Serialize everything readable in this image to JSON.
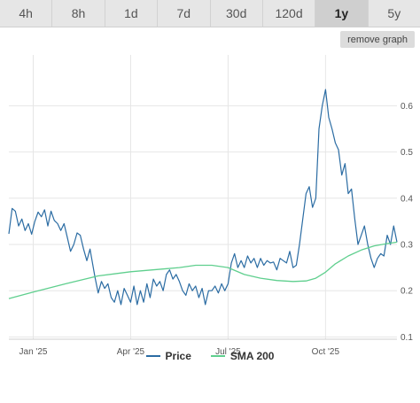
{
  "tabs": [
    {
      "label": "4h",
      "active": false
    },
    {
      "label": "8h",
      "active": false
    },
    {
      "label": "1d",
      "active": false
    },
    {
      "label": "7d",
      "active": false
    },
    {
      "label": "30d",
      "active": false
    },
    {
      "label": "120d",
      "active": false
    },
    {
      "label": "1y",
      "active": true
    },
    {
      "label": "5y",
      "active": false
    }
  ],
  "remove_graph_label": "remove graph",
  "colors": {
    "price": "#2b6ca3",
    "sma": "#5fcf8e",
    "grid": "#e6e6e6"
  },
  "legend": {
    "price": "Price",
    "sma": "SMA 200"
  },
  "chart_data": {
    "type": "line",
    "x_ticks": [
      "Jan '25",
      "Apr '25",
      "Jul '25",
      "Oct '25"
    ],
    "x_tick_pos": [
      0.5,
      3.5,
      6.5,
      9.5
    ],
    "xlim": [
      -0.25,
      11.7
    ],
    "y_ticks": [
      "0.1",
      "0.2",
      "0.3",
      "0.4",
      "0.5",
      "0.6"
    ],
    "ylim": [
      0.095,
      0.71
    ],
    "grid": true,
    "legend_position": "bottom",
    "series": [
      {
        "name": "Price",
        "x": [
          -0.25,
          -0.15,
          -0.05,
          0.05,
          0.15,
          0.25,
          0.35,
          0.45,
          0.55,
          0.65,
          0.75,
          0.85,
          0.95,
          1.05,
          1.15,
          1.25,
          1.35,
          1.45,
          1.55,
          1.65,
          1.75,
          1.85,
          1.95,
          2.05,
          2.15,
          2.25,
          2.4,
          2.5,
          2.6,
          2.7,
          2.8,
          2.9,
          3.0,
          3.1,
          3.2,
          3.3,
          3.4,
          3.5,
          3.6,
          3.7,
          3.8,
          3.9,
          4.0,
          4.1,
          4.2,
          4.3,
          4.4,
          4.5,
          4.6,
          4.7,
          4.8,
          4.9,
          5.0,
          5.1,
          5.2,
          5.3,
          5.4,
          5.5,
          5.6,
          5.7,
          5.8,
          5.9,
          6.0,
          6.1,
          6.2,
          6.3,
          6.4,
          6.5,
          6.6,
          6.7,
          6.8,
          6.9,
          7.0,
          7.1,
          7.2,
          7.3,
          7.4,
          7.5,
          7.6,
          7.7,
          7.8,
          7.9,
          8.0,
          8.1,
          8.2,
          8.3,
          8.4,
          8.5,
          8.6,
          8.7,
          8.8,
          8.9,
          9.0,
          9.1,
          9.2,
          9.3,
          9.4,
          9.5,
          9.6,
          9.7,
          9.8,
          9.9,
          10.0,
          10.1,
          10.2,
          10.3,
          10.4,
          10.5,
          10.6,
          10.7,
          10.8,
          10.9,
          11.0,
          11.1,
          11.2,
          11.3,
          11.4,
          11.5,
          11.6,
          11.7
        ],
        "y": [
          0.323,
          0.378,
          0.372,
          0.34,
          0.355,
          0.33,
          0.345,
          0.322,
          0.35,
          0.37,
          0.36,
          0.375,
          0.34,
          0.372,
          0.352,
          0.345,
          0.33,
          0.345,
          0.315,
          0.285,
          0.3,
          0.325,
          0.32,
          0.29,
          0.265,
          0.29,
          0.23,
          0.195,
          0.22,
          0.205,
          0.215,
          0.185,
          0.175,
          0.2,
          0.17,
          0.205,
          0.19,
          0.175,
          0.21,
          0.17,
          0.2,
          0.175,
          0.215,
          0.185,
          0.225,
          0.21,
          0.22,
          0.2,
          0.235,
          0.245,
          0.225,
          0.235,
          0.22,
          0.2,
          0.19,
          0.215,
          0.2,
          0.21,
          0.185,
          0.205,
          0.17,
          0.2,
          0.2,
          0.21,
          0.195,
          0.215,
          0.2,
          0.215,
          0.26,
          0.28,
          0.25,
          0.265,
          0.25,
          0.275,
          0.26,
          0.27,
          0.25,
          0.27,
          0.255,
          0.265,
          0.26,
          0.262,
          0.245,
          0.27,
          0.265,
          0.26,
          0.285,
          0.25,
          0.255,
          0.3,
          0.355,
          0.41,
          0.425,
          0.38,
          0.4,
          0.55,
          0.6,
          0.635,
          0.575,
          0.55,
          0.52,
          0.505,
          0.45,
          0.475,
          0.41,
          0.42,
          0.355,
          0.3,
          0.32,
          0.34,
          0.3,
          0.27,
          0.25,
          0.27,
          0.28,
          0.275,
          0.32,
          0.3,
          0.34,
          0.305
        ]
      },
      {
        "name": "SMA 200",
        "x": [
          -0.25,
          0.5,
          1.5,
          2.5,
          3.5,
          4.5,
          5.0,
          5.5,
          6.0,
          6.5,
          7.0,
          7.5,
          8.0,
          8.5,
          8.9,
          9.2,
          9.5,
          9.8,
          10.2,
          10.6,
          11.0,
          11.4,
          11.7
        ],
        "y": [
          0.183,
          0.197,
          0.215,
          0.232,
          0.241,
          0.247,
          0.25,
          0.255,
          0.255,
          0.25,
          0.235,
          0.227,
          0.222,
          0.22,
          0.221,
          0.227,
          0.24,
          0.258,
          0.275,
          0.288,
          0.297,
          0.302,
          0.305
        ]
      }
    ]
  }
}
